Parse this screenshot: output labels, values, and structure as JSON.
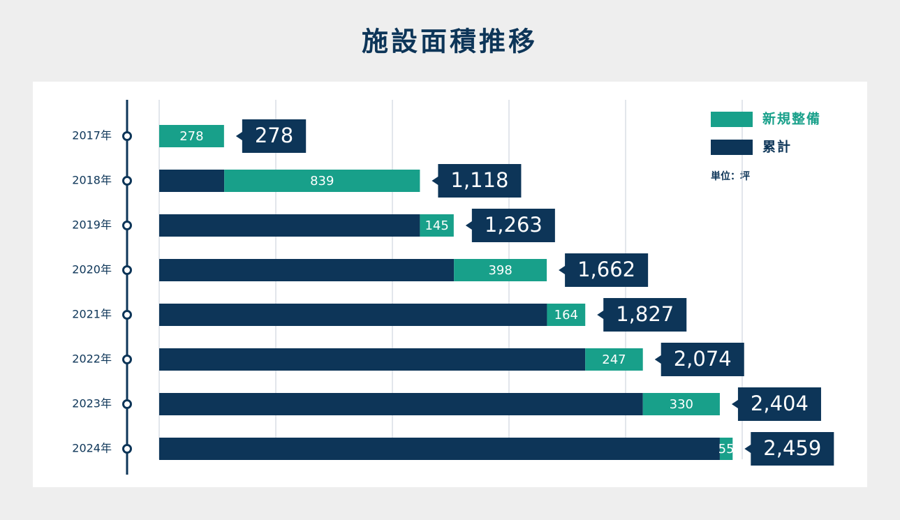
{
  "chart_data": {
    "type": "stacked_barh",
    "title": "施設面積推移",
    "categories": [
      "2017年",
      "2018年",
      "2019年",
      "2020年",
      "2021年",
      "2022年",
      "2023年",
      "2024年"
    ],
    "series": [
      {
        "name": "新規整備",
        "color": "#18a08a",
        "values": [
          278,
          839,
          145,
          398,
          164,
          247,
          330,
          55
        ]
      },
      {
        "name": "累計",
        "color": "#0d3558",
        "values": [
          0,
          279,
          1118,
          1264,
          1663,
          1827,
          2074,
          2404
        ]
      }
    ],
    "totals": [
      278,
      1118,
      1263,
      1662,
      1827,
      2074,
      2404,
      2459
    ],
    "total_labels": [
      "278",
      "1,118",
      "1,263",
      "1,662",
      "1,827",
      "2,074",
      "2,404",
      "2,459"
    ],
    "unit_label": "単位：坪",
    "xlim": [
      0,
      2500
    ],
    "xticks": [
      0,
      500,
      1000,
      1500,
      2000,
      2500
    ],
    "grid": true,
    "legend": "upper right"
  }
}
